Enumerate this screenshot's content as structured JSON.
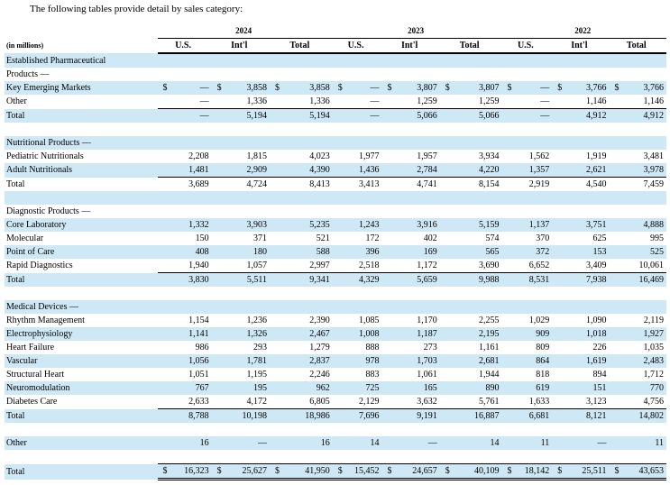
{
  "intro": "The following tables provide detail by sales category:",
  "unit_label": "(in millions)",
  "years": [
    "2024",
    "2023",
    "2022"
  ],
  "col_headers": [
    "U.S.",
    "Int'l",
    "Total"
  ],
  "sections": [
    {
      "title_lines": [
        "Established Pharmaceutical",
        "Products —"
      ],
      "rows": [
        {
          "label": "Key Emerging Markets",
          "dollar": true,
          "values": [
            "—",
            "3,858",
            "3,858",
            "—",
            "3,807",
            "3,807",
            "—",
            "3,766",
            "3,766"
          ]
        },
        {
          "label": "Other",
          "values": [
            "—",
            "1,336",
            "1,336",
            "—",
            "1,259",
            "1,259",
            "—",
            "1,146",
            "1,146"
          ]
        }
      ],
      "total": {
        "label": "Total",
        "values": [
          "—",
          "5,194",
          "5,194",
          "—",
          "5,066",
          "5,066",
          "—",
          "4,912",
          "4,912"
        ]
      }
    },
    {
      "title_lines": [
        "Nutritional Products —"
      ],
      "rows": [
        {
          "label": "Pediatric Nutritionals",
          "values": [
            "2,208",
            "1,815",
            "4,023",
            "1,977",
            "1,957",
            "3,934",
            "1,562",
            "1,919",
            "3,481"
          ]
        },
        {
          "label": "Adult Nutritionals",
          "values": [
            "1,481",
            "2,909",
            "4,390",
            "1,436",
            "2,784",
            "4,220",
            "1,357",
            "2,621",
            "3,978"
          ]
        }
      ],
      "total": {
        "label": "Total",
        "values": [
          "3,689",
          "4,724",
          "8,413",
          "3,413",
          "4,741",
          "8,154",
          "2,919",
          "4,540",
          "7,459"
        ]
      }
    },
    {
      "title_lines": [
        "Diagnostic Products —"
      ],
      "rows": [
        {
          "label": "Core Laboratory",
          "values": [
            "1,332",
            "3,903",
            "5,235",
            "1,243",
            "3,916",
            "5,159",
            "1,137",
            "3,751",
            "4,888"
          ]
        },
        {
          "label": "Molecular",
          "values": [
            "150",
            "371",
            "521",
            "172",
            "402",
            "574",
            "370",
            "625",
            "995"
          ]
        },
        {
          "label": "Point of Care",
          "values": [
            "408",
            "180",
            "588",
            "396",
            "169",
            "565",
            "372",
            "153",
            "525"
          ]
        },
        {
          "label": "Rapid Diagnostics",
          "values": [
            "1,940",
            "1,057",
            "2,997",
            "2,518",
            "1,172",
            "3,690",
            "6,652",
            "3,409",
            "10,061"
          ]
        }
      ],
      "total": {
        "label": "Total",
        "values": [
          "3,830",
          "5,511",
          "9,341",
          "4,329",
          "5,659",
          "9,988",
          "8,531",
          "7,938",
          "16,469"
        ]
      }
    },
    {
      "title_lines": [
        "Medical Devices —"
      ],
      "rows": [
        {
          "label": "Rhythm Management",
          "values": [
            "1,154",
            "1,236",
            "2,390",
            "1,085",
            "1,170",
            "2,255",
            "1,029",
            "1,090",
            "2,119"
          ]
        },
        {
          "label": "Electrophysiology",
          "values": [
            "1,141",
            "1,326",
            "2,467",
            "1,008",
            "1,187",
            "2,195",
            "909",
            "1,018",
            "1,927"
          ]
        },
        {
          "label": "Heart Failure",
          "values": [
            "986",
            "293",
            "1,279",
            "888",
            "273",
            "1,161",
            "809",
            "226",
            "1,035"
          ]
        },
        {
          "label": "Vascular",
          "values": [
            "1,056",
            "1,781",
            "2,837",
            "978",
            "1,703",
            "2,681",
            "864",
            "1,619",
            "2,483"
          ]
        },
        {
          "label": "Structural Heart",
          "values": [
            "1,051",
            "1,195",
            "2,246",
            "883",
            "1,061",
            "1,944",
            "818",
            "894",
            "1,712"
          ]
        },
        {
          "label": "Neuromodulation",
          "values": [
            "767",
            "195",
            "962",
            "725",
            "165",
            "890",
            "619",
            "151",
            "770"
          ]
        },
        {
          "label": "Diabetes Care",
          "values": [
            "2,633",
            "4,172",
            "6,805",
            "2,129",
            "3,632",
            "5,761",
            "1,633",
            "3,123",
            "4,756"
          ]
        }
      ],
      "total": {
        "label": "Total",
        "values": [
          "8,788",
          "10,198",
          "18,986",
          "7,696",
          "9,191",
          "16,887",
          "6,681",
          "8,121",
          "14,802"
        ]
      }
    }
  ],
  "other_row": {
    "label": "Other",
    "values": [
      "16",
      "—",
      "16",
      "14",
      "—",
      "14",
      "11",
      "—",
      "11"
    ]
  },
  "grand_total": {
    "label": "Total",
    "values": [
      "16,323",
      "25,627",
      "41,950",
      "15,452",
      "24,657",
      "40,109",
      "18,142",
      "25,511",
      "43,653"
    ]
  },
  "dollar_sign": "$"
}
